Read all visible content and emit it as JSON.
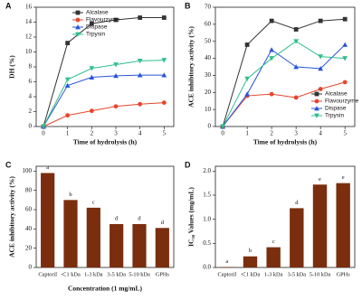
{
  "chart_data": [
    {
      "type": "line",
      "label": "A",
      "xlabel": "Time of hydrolysis (h)",
      "ylabel": "DH (%)",
      "x": [
        0,
        1,
        2,
        3,
        4,
        5
      ],
      "xlim": [
        -0.3,
        5.4
      ],
      "xticks": [
        0,
        1,
        2,
        3,
        4,
        5
      ],
      "ylim": [
        0,
        16
      ],
      "yticks": [
        0,
        2,
        4,
        6,
        8,
        10,
        12,
        14,
        16
      ],
      "legend": "upper center",
      "series": [
        {
          "name": "Alcalase",
          "color": "#333333",
          "marker": "square",
          "values": [
            0,
            11.2,
            13.8,
            14.3,
            14.6,
            14.6
          ]
        },
        {
          "name": "Flavourzyme",
          "color": "#e8452c",
          "marker": "circle",
          "values": [
            0,
            1.5,
            2.1,
            2.7,
            3.0,
            3.2
          ]
        },
        {
          "name": "Dispase",
          "color": "#2a55d8",
          "marker": "triangle-up",
          "values": [
            0,
            5.5,
            6.6,
            6.8,
            6.9,
            6.9
          ]
        },
        {
          "name": "Trpysin",
          "color": "#2fbf8a",
          "marker": "triangle-down",
          "values": [
            0,
            6.3,
            7.8,
            8.3,
            8.8,
            8.9
          ]
        }
      ]
    },
    {
      "type": "line",
      "label": "B",
      "xlabel": "Time of hydrolysis (h)",
      "ylabel": "ACE inhibitory activity (%)",
      "x": [
        0,
        1,
        2,
        3,
        4,
        5
      ],
      "xlim": [
        -0.3,
        5.4
      ],
      "xticks": [
        0,
        1,
        2,
        3,
        4,
        5
      ],
      "ylim": [
        0,
        70
      ],
      "yticks": [
        0,
        10,
        20,
        30,
        40,
        50,
        60,
        70
      ],
      "legend": "lower right",
      "series": [
        {
          "name": "Alcalase",
          "color": "#333333",
          "marker": "square",
          "values": [
            0,
            48,
            62,
            57,
            62,
            63
          ]
        },
        {
          "name": "Flavourzyme",
          "color": "#e8452c",
          "marker": "circle",
          "values": [
            0,
            18,
            19,
            17,
            22,
            26
          ]
        },
        {
          "name": "Dispase",
          "color": "#2a55d8",
          "marker": "triangle-up",
          "values": [
            0,
            19,
            45,
            35,
            34,
            48
          ]
        },
        {
          "name": "Trpysin",
          "color": "#2fbf8a",
          "marker": "triangle-down",
          "values": [
            0,
            28,
            40,
            50,
            41,
            40
          ]
        }
      ]
    },
    {
      "type": "bar",
      "label": "C",
      "xlabel": "Concentration (1 mg/mL)",
      "ylabel": "ACE inhibitory activity (%)",
      "categories": [
        "Captoril",
        "＜1 kDa",
        "1-3 kDa",
        "3-5 kDa",
        "5-10 kDa",
        "GPHs"
      ],
      "values": [
        98,
        70,
        62,
        45,
        45,
        41
      ],
      "annotations": [
        "a",
        "b",
        "c",
        "d",
        "d",
        "d"
      ],
      "color": "#7a2e0e",
      "ylim": [
        0,
        105
      ],
      "yticks": [
        0,
        20,
        40,
        60,
        80,
        100
      ]
    },
    {
      "type": "bar",
      "label": "D",
      "ylabel": "IC₅₀ Values (mg/mL)",
      "categories": [
        "Captoril",
        "＜1 kDa",
        "1-3 kDa",
        "3-5 kDa",
        "5-10 kDa",
        "GPHs"
      ],
      "values": [
        0.01,
        0.23,
        0.42,
        1.23,
        1.72,
        1.75
      ],
      "annotations": [
        "a",
        "b",
        "c",
        "d",
        "e",
        "e"
      ],
      "color": "#7a2e0e",
      "ylim": [
        0,
        2.1
      ],
      "yticks": [
        {
          "value": 0,
          "label": "0.0"
        },
        {
          "value": 0.5,
          "label": "0.5"
        },
        {
          "value": 1,
          "label": "1.0"
        },
        {
          "value": 1.5,
          "label": "1.5"
        },
        {
          "value": 2,
          "label": "2.0"
        }
      ]
    }
  ]
}
